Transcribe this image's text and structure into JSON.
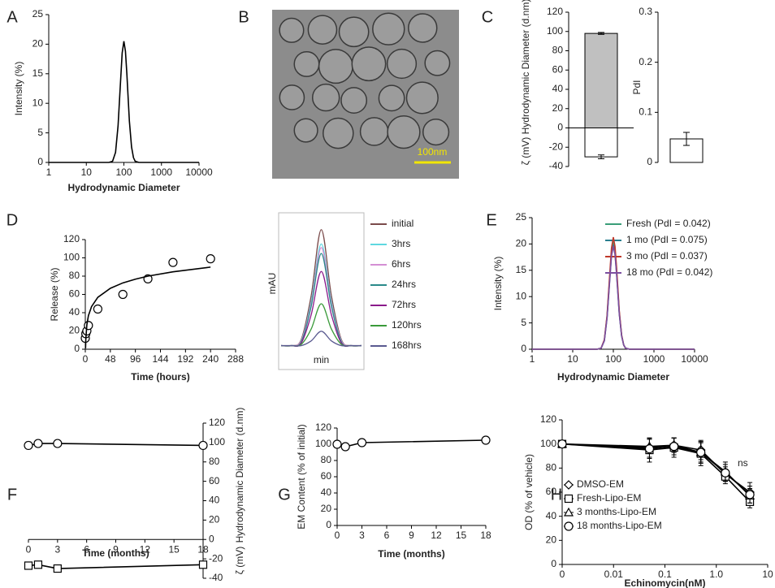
{
  "chart_data": [
    {
      "panel": "A",
      "type": "line",
      "xlabel": "Hydrodynamic Diameter",
      "ylabel": "Intensity (%)",
      "xlog": true,
      "xlim": [
        1,
        10000
      ],
      "xticks": [
        1,
        10,
        100,
        1000,
        10000
      ],
      "ylim": [
        0,
        25
      ],
      "yticks": [
        0,
        5,
        10,
        15,
        20,
        25
      ],
      "x": [
        1,
        40,
        50,
        60,
        70,
        80,
        90,
        100,
        110,
        120,
        140,
        160,
        180,
        200,
        250,
        10000
      ],
      "series": [
        {
          "color": "#000000",
          "values": [
            0,
            0,
            0.2,
            1.7,
            6.2,
            12.8,
            18.5,
            20.5,
            18.8,
            15.0,
            7.0,
            2.6,
            0.8,
            0.2,
            0,
            0
          ]
        }
      ]
    },
    {
      "panel": "B",
      "type": "image",
      "scale_bar_label": "100nm",
      "scale_bar_color": "#f2e600"
    },
    {
      "panel": "C",
      "type": "bar",
      "ylabels": [
        "Hydrodynamic Diameter (d.nm)",
        "ζ (mV)"
      ],
      "ylim": [
        -40,
        120
      ],
      "yticks": [
        -40,
        -20,
        0,
        20,
        40,
        60,
        80,
        100,
        120
      ],
      "categories": [
        null
      ],
      "series": [
        {
          "color": "#c0c0c0",
          "values": [
            98
          ],
          "errors": [
            1
          ]
        },
        {
          "color": "#ffffff",
          "values": [
            -30
          ],
          "errors": [
            2
          ]
        }
      ]
    },
    {
      "type": "bar",
      "ylabel": "PdI",
      "ylim": [
        0,
        0.3
      ],
      "yticks": [
        0,
        0.1,
        0.2,
        0.3
      ],
      "categories": [
        null
      ],
      "series": [
        {
          "color": "#ffffff",
          "values": [
            0.047
          ],
          "errors": [
            0.013
          ]
        }
      ]
    },
    {
      "panel": "D",
      "type": "scatter",
      "xlabel": "Time (hours)",
      "ylabel": "Release (%)",
      "xlim": [
        0,
        288
      ],
      "xticks": [
        0,
        48,
        96,
        144,
        192,
        240,
        288
      ],
      "ylim": [
        0,
        120
      ],
      "yticks": [
        0,
        20,
        40,
        60,
        80,
        100,
        120
      ],
      "series": [
        {
          "color": "#000000",
          "marker": "circle",
          "line": false,
          "x": [
            0,
            1,
            3,
            6,
            24,
            72,
            120,
            168,
            240
          ],
          "values": [
            12,
            17,
            20,
            26,
            44,
            60,
            77,
            95,
            99
          ],
          "errors": [
            2,
            2,
            2,
            2,
            2,
            2,
            2,
            2,
            2
          ]
        },
        {
          "color": "#000000",
          "line": true,
          "x": [
            0.5,
            1,
            3,
            6,
            12,
            24,
            48,
            72,
            96,
            120,
            168,
            240
          ],
          "values": [
            1.0,
            11,
            26.8,
            36.8,
            46.7,
            56.8,
            66.7,
            72.6,
            76.7,
            80.0,
            84.7,
            89.9
          ]
        }
      ]
    },
    {
      "type": "line",
      "smooth": true,
      "xlabel": "min",
      "ylabel": "mAU",
      "xlim": [
        0,
        8
      ],
      "ylim": [
        0,
        110
      ],
      "x": [
        0,
        1,
        2,
        3,
        4,
        5,
        6,
        7,
        8
      ],
      "series": [
        {
          "name": "initial",
          "color": "#7a4a4a",
          "values": [
            3,
            3,
            8,
            45,
            100,
            45,
            8,
            3,
            3
          ]
        },
        {
          "name": "3hrs",
          "color": "#5fd8e0",
          "values": [
            3,
            3,
            7,
            40,
            88,
            40,
            7,
            3,
            3
          ]
        },
        {
          "name": "6hrs",
          "color": "#d48fd4",
          "values": [
            3,
            3,
            7,
            38,
            85,
            38,
            7,
            3,
            3
          ]
        },
        {
          "name": "24hrs",
          "color": "#2a8a8a",
          "values": [
            3,
            3,
            6,
            36,
            80,
            36,
            6,
            3,
            3
          ]
        },
        {
          "name": "72hrs",
          "color": "#8b1a8b",
          "values": [
            3,
            3,
            5,
            29,
            65,
            29,
            5,
            3,
            3
          ]
        },
        {
          "name": "120hrs",
          "color": "#3a9a3a",
          "values": [
            3,
            3,
            4,
            17,
            38,
            17,
            4,
            3,
            3
          ]
        },
        {
          "name": "168hrs",
          "color": "#5a5a90",
          "values": [
            3,
            3,
            3,
            7,
            15,
            7,
            3,
            3,
            3
          ]
        }
      ]
    },
    {
      "panel": "E",
      "type": "line",
      "xlabel": "Hydrodynamic Diameter",
      "ylabel": "Intensity (%)",
      "xlog": true,
      "xlim": [
        1,
        10000
      ],
      "xticks": [
        1,
        10,
        100,
        1000,
        10000
      ],
      "ylim": [
        0,
        25
      ],
      "yticks": [
        0,
        5,
        10,
        15,
        20,
        25
      ],
      "x": [
        1,
        40,
        50,
        60,
        70,
        80,
        90,
        100,
        110,
        120,
        140,
        160,
        180,
        200,
        250,
        10000
      ],
      "series": [
        {
          "name": "Fresh (PdI = 0.042)",
          "color": "#3a9e78",
          "values": [
            0,
            0,
            0.2,
            1.7,
            6.2,
            12.8,
            18.5,
            20.5,
            18.8,
            15.0,
            7.0,
            2.6,
            0.8,
            0.2,
            0,
            0
          ]
        },
        {
          "name": "1 mo (PdI = 0.075)",
          "color": "#2a7f8f",
          "values": [
            0,
            0,
            0.2,
            1.6,
            6.0,
            12.4,
            17.9,
            19.8,
            18.2,
            14.5,
            6.8,
            2.5,
            0.8,
            0.2,
            0,
            0
          ]
        },
        {
          "name": "3 mo (PdI = 0.037)",
          "color": "#c0392b",
          "values": [
            0,
            0,
            0.2,
            1.8,
            6.4,
            13.3,
            19.2,
            21.3,
            19.5,
            15.6,
            7.3,
            2.7,
            0.8,
            0.2,
            0,
            0
          ]
        },
        {
          "name": "18 mo (PdI = 0.042)",
          "color": "#7b4fa0",
          "values": [
            0,
            0,
            0.2,
            1.6,
            5.9,
            12.2,
            17.7,
            19.6,
            18.0,
            14.3,
            6.7,
            2.5,
            0.8,
            0.2,
            0,
            0
          ]
        }
      ]
    },
    {
      "panel": "F",
      "type": "line",
      "xlabel": "Time (months)",
      "ylabels": [
        "Hydrodynamic Diameter (d.nm)",
        "ζ (mV)"
      ],
      "yaxis_side": "right",
      "xaxis_at_zero": true,
      "xlim": [
        0,
        18
      ],
      "xticks": [
        0,
        3,
        6,
        9,
        12,
        15,
        18
      ],
      "ylim": [
        -40,
        120
      ],
      "yticks": [
        -40,
        -20,
        0,
        20,
        40,
        60,
        80,
        100,
        120
      ],
      "x": [
        0,
        1,
        3,
        18
      ],
      "series": [
        {
          "color": "#000000",
          "marker": "circle",
          "values": [
            97,
            99,
            99,
            97
          ]
        },
        {
          "color": "#000000",
          "marker": "square",
          "values": [
            -27,
            -26,
            -30,
            -26
          ]
        }
      ]
    },
    {
      "panel": "G",
      "type": "line",
      "xlabel": "Time (months)",
      "ylabel": "EM Content (% of initial)",
      "xlim": [
        0,
        18
      ],
      "xticks": [
        0,
        3,
        6,
        9,
        12,
        15,
        18
      ],
      "ylim": [
        0,
        120
      ],
      "yticks": [
        0,
        20,
        40,
        60,
        80,
        100,
        120
      ],
      "x": [
        0,
        1,
        3,
        18
      ],
      "series": [
        {
          "color": "#000000",
          "marker": "circle",
          "values": [
            100,
            97,
            102,
            105
          ],
          "errors": [
            2,
            2,
            2,
            2
          ]
        }
      ]
    },
    {
      "panel": "H",
      "type": "line",
      "xlabel": "Echinomycin(nM)",
      "ylabel": "OD (% of vehicle)",
      "xlog": true,
      "annotation": "ns",
      "xlim": [
        0.001,
        10
      ],
      "xticks": [
        {
          "value": 0.001,
          "label": "0"
        },
        0.01,
        0.1,
        {
          "value": 1,
          "label": "1.0"
        },
        10
      ],
      "ylim": [
        0,
        120
      ],
      "yticks": [
        0,
        20,
        40,
        60,
        80,
        100,
        120
      ],
      "x": [
        0.001,
        0.05,
        0.15,
        0.5,
        1.5,
        4.5
      ],
      "series": [
        {
          "name": "DMSO-EM",
          "color": "#000000",
          "marker": "diamond",
          "values": [
            100,
            97,
            99,
            95,
            75,
            60
          ],
          "errors": [
            0,
            8,
            6,
            8,
            6,
            8
          ]
        },
        {
          "name": "Fresh-Lipo-EM",
          "color": "#000000",
          "marker": "square",
          "values": [
            100,
            95,
            97,
            92,
            73,
            52
          ],
          "errors": [
            0,
            10,
            8,
            10,
            6,
            5
          ]
        },
        {
          "name": "3 months-Lipo-EM",
          "color": "#000000",
          "marker": "triangle",
          "values": [
            100,
            98,
            99,
            93,
            77,
            57
          ],
          "errors": [
            0,
            6,
            6,
            8,
            8,
            6
          ]
        },
        {
          "name": "18 months-Lipo-EM",
          "color": "#000000",
          "marker": "circle",
          "values": [
            100,
            96,
            98,
            93,
            76,
            58
          ],
          "errors": [
            0,
            8,
            7,
            9,
            7,
            7
          ]
        }
      ]
    }
  ]
}
